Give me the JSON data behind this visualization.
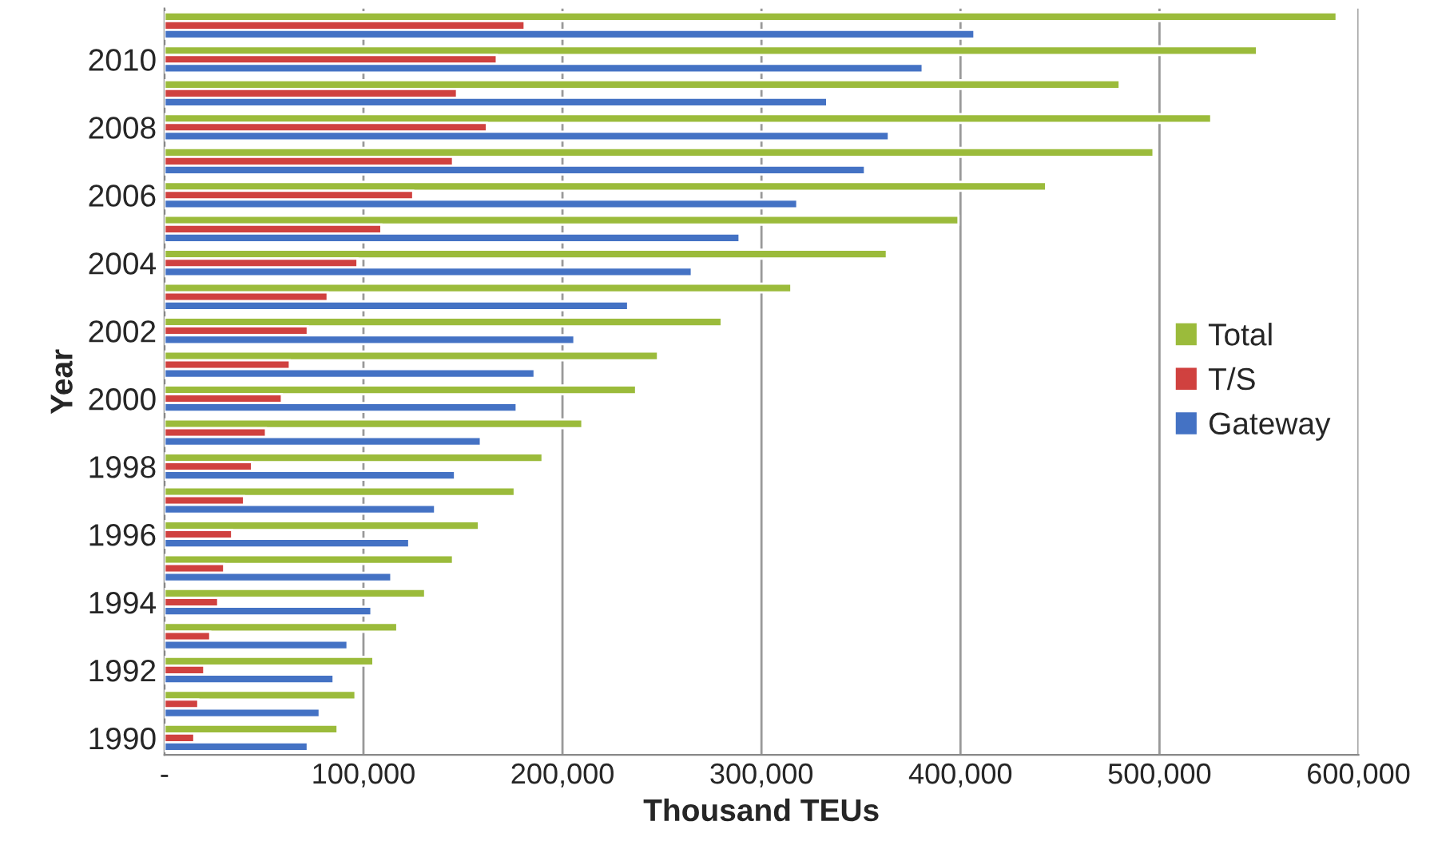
{
  "chart_data": {
    "type": "bar",
    "orientation": "horizontal",
    "xlabel": "Thousand TEUs",
    "ylabel": "Year",
    "categories": [
      null,
      "2010",
      null,
      "2008",
      null,
      "2006",
      null,
      "2004",
      null,
      "2002",
      null,
      "2000",
      null,
      "1998",
      null,
      "1996",
      null,
      "1994",
      null,
      "1992",
      null,
      "1990"
    ],
    "series": [
      {
        "name": "Total",
        "color": "#9bbb3b",
        "values": [
          589000,
          549000,
          480000,
          526000,
          497000,
          443000,
          399000,
          363000,
          315000,
          280000,
          248000,
          237000,
          210000,
          190000,
          176000,
          158000,
          145000,
          131000,
          117000,
          105000,
          96000,
          87000
        ]
      },
      {
        "name": "T/S",
        "color": "#d0413f",
        "values": [
          181000,
          167000,
          147000,
          162000,
          145000,
          125000,
          109000,
          97000,
          82000,
          72000,
          63000,
          59000,
          51000,
          44000,
          40000,
          34000,
          30000,
          27000,
          23000,
          20000,
          17000,
          15000
        ]
      },
      {
        "name": "Gateway",
        "color": "#4472c4",
        "values": [
          407000,
          381000,
          333000,
          364000,
          352000,
          318000,
          289000,
          265000,
          233000,
          206000,
          186000,
          177000,
          159000,
          146000,
          136000,
          123000,
          114000,
          104000,
          92000,
          85000,
          78000,
          72000
        ]
      }
    ],
    "xlim": [
      0,
      600000
    ],
    "xticks": [
      {
        "value": 0,
        "label": "-"
      },
      {
        "value": 100000,
        "label": "100,000"
      },
      {
        "value": 200000,
        "label": "200,000"
      },
      {
        "value": 300000,
        "label": "300,000"
      },
      {
        "value": 400000,
        "label": "400,000"
      },
      {
        "value": 500000,
        "label": "500,000"
      },
      {
        "value": 600000,
        "label": "600,000"
      }
    ],
    "grid": "x",
    "legend": "right"
  }
}
